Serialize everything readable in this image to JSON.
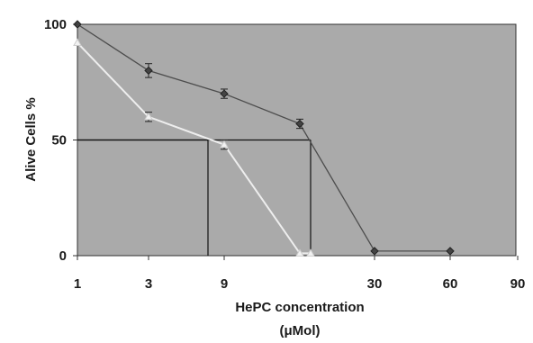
{
  "chart_data": {
    "type": "line",
    "title": "",
    "xlabel": "HePC concentration",
    "xlabel_unit": "(μMol)",
    "ylabel": "Alive Cells %",
    "x_tick_labels": [
      "1",
      "3",
      "9",
      "30",
      "60",
      "90"
    ],
    "y_tick_labels": [
      "0",
      "50",
      "100"
    ],
    "ylim": [
      0,
      100
    ],
    "x_scale": "categorical-log-like",
    "grid": false,
    "plot_background": "#aaaaaa",
    "series": [
      {
        "marker": "diamond",
        "color": "#4d4d4d",
        "points": [
          {
            "x": "1",
            "y": 100,
            "err": 0
          },
          {
            "x": "3",
            "y": 80,
            "err": 3
          },
          {
            "x": "9",
            "y": 70,
            "err": 2
          },
          {
            "x": "~15",
            "y": 57,
            "err": 2
          },
          {
            "x": "30",
            "y": 2,
            "err": 0
          },
          {
            "x": "60",
            "y": 2,
            "err": 0
          }
        ]
      },
      {
        "marker": "triangle",
        "color": "#eeeeee",
        "points": [
          {
            "x": "1",
            "y": 92,
            "err": 0
          },
          {
            "x": "3",
            "y": 60,
            "err": 2
          },
          {
            "x": "9",
            "y": 48,
            "err": 2
          },
          {
            "x": "~15",
            "y": 1,
            "err": 0
          },
          {
            "x": "~18",
            "y": 1,
            "err": 0
          }
        ]
      }
    ],
    "reference_lines": [
      {
        "y": 50,
        "x_end": "~7.5",
        "note": "IC50 marker series 2"
      },
      {
        "y": 50,
        "x_end": "~18",
        "note": "IC50 marker series 1"
      }
    ]
  }
}
